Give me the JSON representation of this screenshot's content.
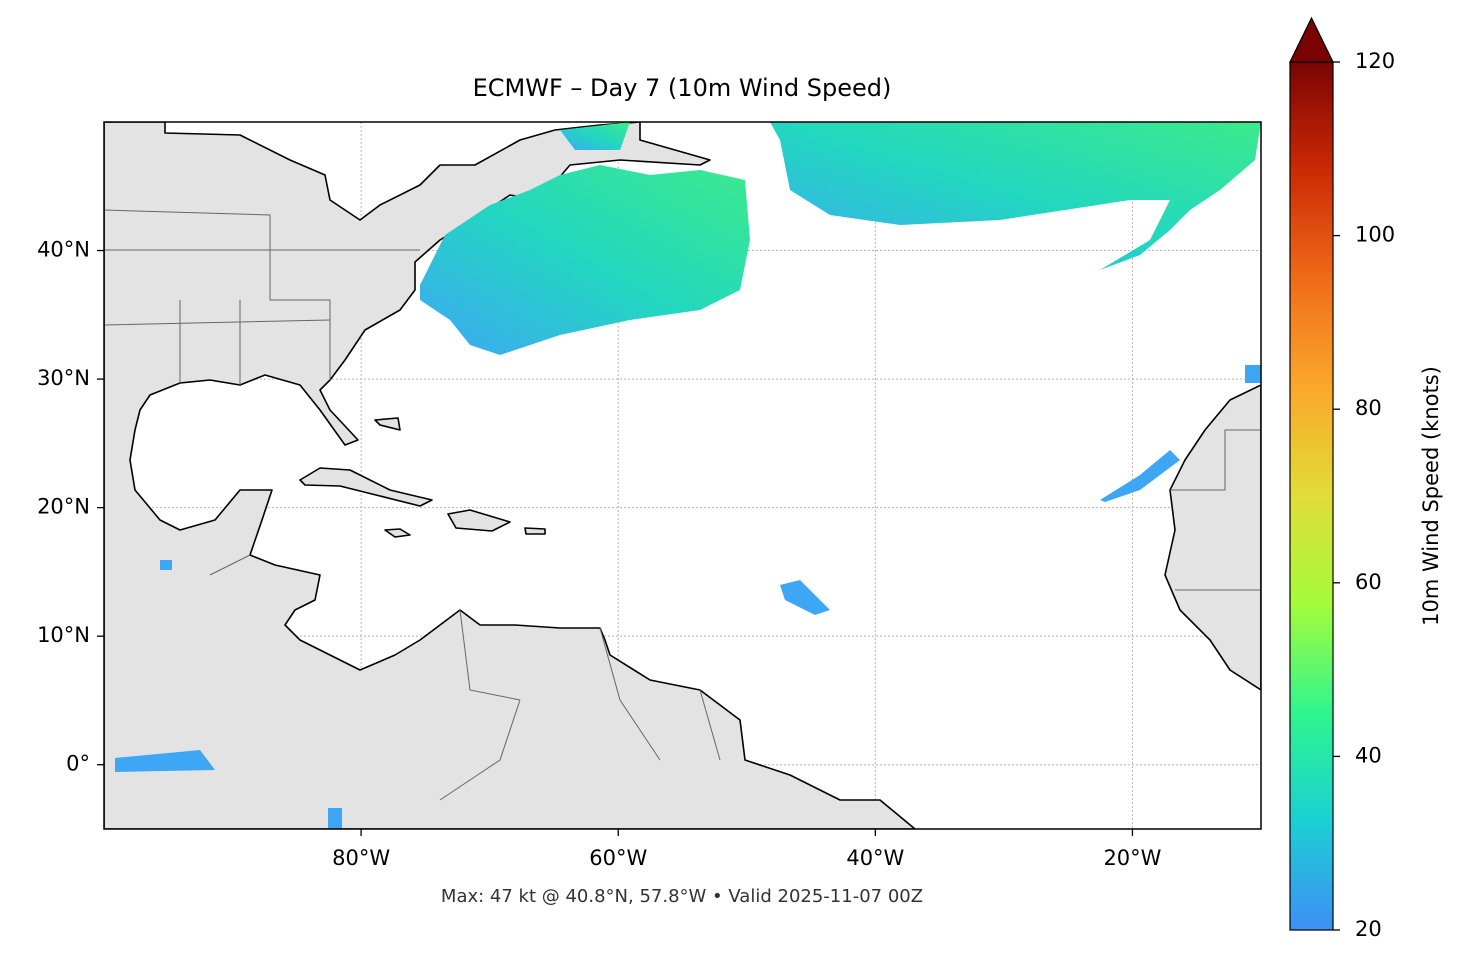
{
  "title": "ECMWF – Day 7 (10m Wind Speed)",
  "map": {
    "lon_range": [
      -100,
      -10
    ],
    "lat_range": [
      -5,
      50
    ],
    "grid": true,
    "lon_ticks": [
      {
        "value": -80,
        "label": "80°W"
      },
      {
        "value": -60,
        "label": "60°W"
      },
      {
        "value": -40,
        "label": "40°W"
      },
      {
        "value": -20,
        "label": "20°W"
      }
    ],
    "lat_ticks": [
      {
        "value": 0,
        "label": "0°"
      },
      {
        "value": 10,
        "label": "10°N"
      },
      {
        "value": 20,
        "label": "20°N"
      },
      {
        "value": 30,
        "label": "30°N"
      },
      {
        "value": 40,
        "label": "40°N"
      }
    ]
  },
  "colorbar": {
    "label": "10m Wind Speed (knots)",
    "range": [
      20,
      120
    ],
    "ticks": [
      20,
      40,
      60,
      80,
      100,
      120
    ],
    "extend": "max",
    "colors": [
      "#3e8ff5",
      "#1bd0d4",
      "#2ff58e",
      "#a4fc3c",
      "#e1dd37",
      "#fba82b",
      "#f06b18",
      "#cb2a04",
      "#7a0403"
    ]
  },
  "footer": "Max: 47 kt @ 40.8°N, 57.8°W • Valid 2025-11-07 00Z"
}
